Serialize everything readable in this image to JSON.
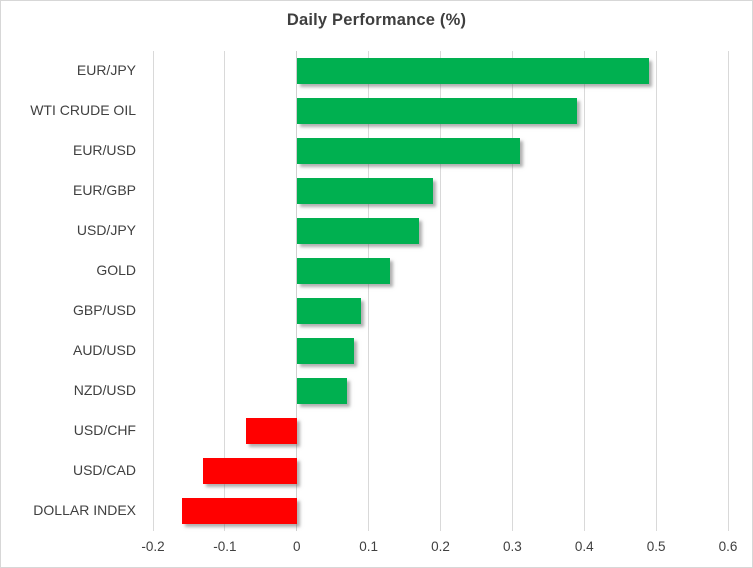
{
  "title": "Daily Performance (%)",
  "chart_data": {
    "type": "bar",
    "orientation": "horizontal",
    "title": "Daily Performance (%)",
    "categories": [
      "EUR/JPY",
      "WTI CRUDE OIL",
      "EUR/USD",
      "EUR/GBP",
      "USD/JPY",
      "GOLD",
      "GBP/USD",
      "AUD/USD",
      "NZD/USD",
      "USD/CHF",
      "USD/CAD",
      "DOLLAR INDEX"
    ],
    "values": [
      0.49,
      0.39,
      0.31,
      0.19,
      0.17,
      0.13,
      0.09,
      0.08,
      0.07,
      -0.07,
      -0.13,
      -0.16
    ],
    "xlabel": "",
    "ylabel": "",
    "xlim": [
      -0.2,
      0.6
    ],
    "xticks": [
      -0.2,
      -0.1,
      0,
      0.1,
      0.2,
      0.3,
      0.4,
      0.5,
      0.6
    ],
    "xtick_labels": [
      "-0.2",
      "-0.1",
      "0",
      "0.1",
      "0.2",
      "0.3",
      "0.4",
      "0.5",
      "0.6"
    ],
    "grid": true,
    "legend": "none",
    "positive_color": "#00B050",
    "negative_color": "#FF0000",
    "gridline_color": "#D9D9D9",
    "text_color": "#404040"
  }
}
